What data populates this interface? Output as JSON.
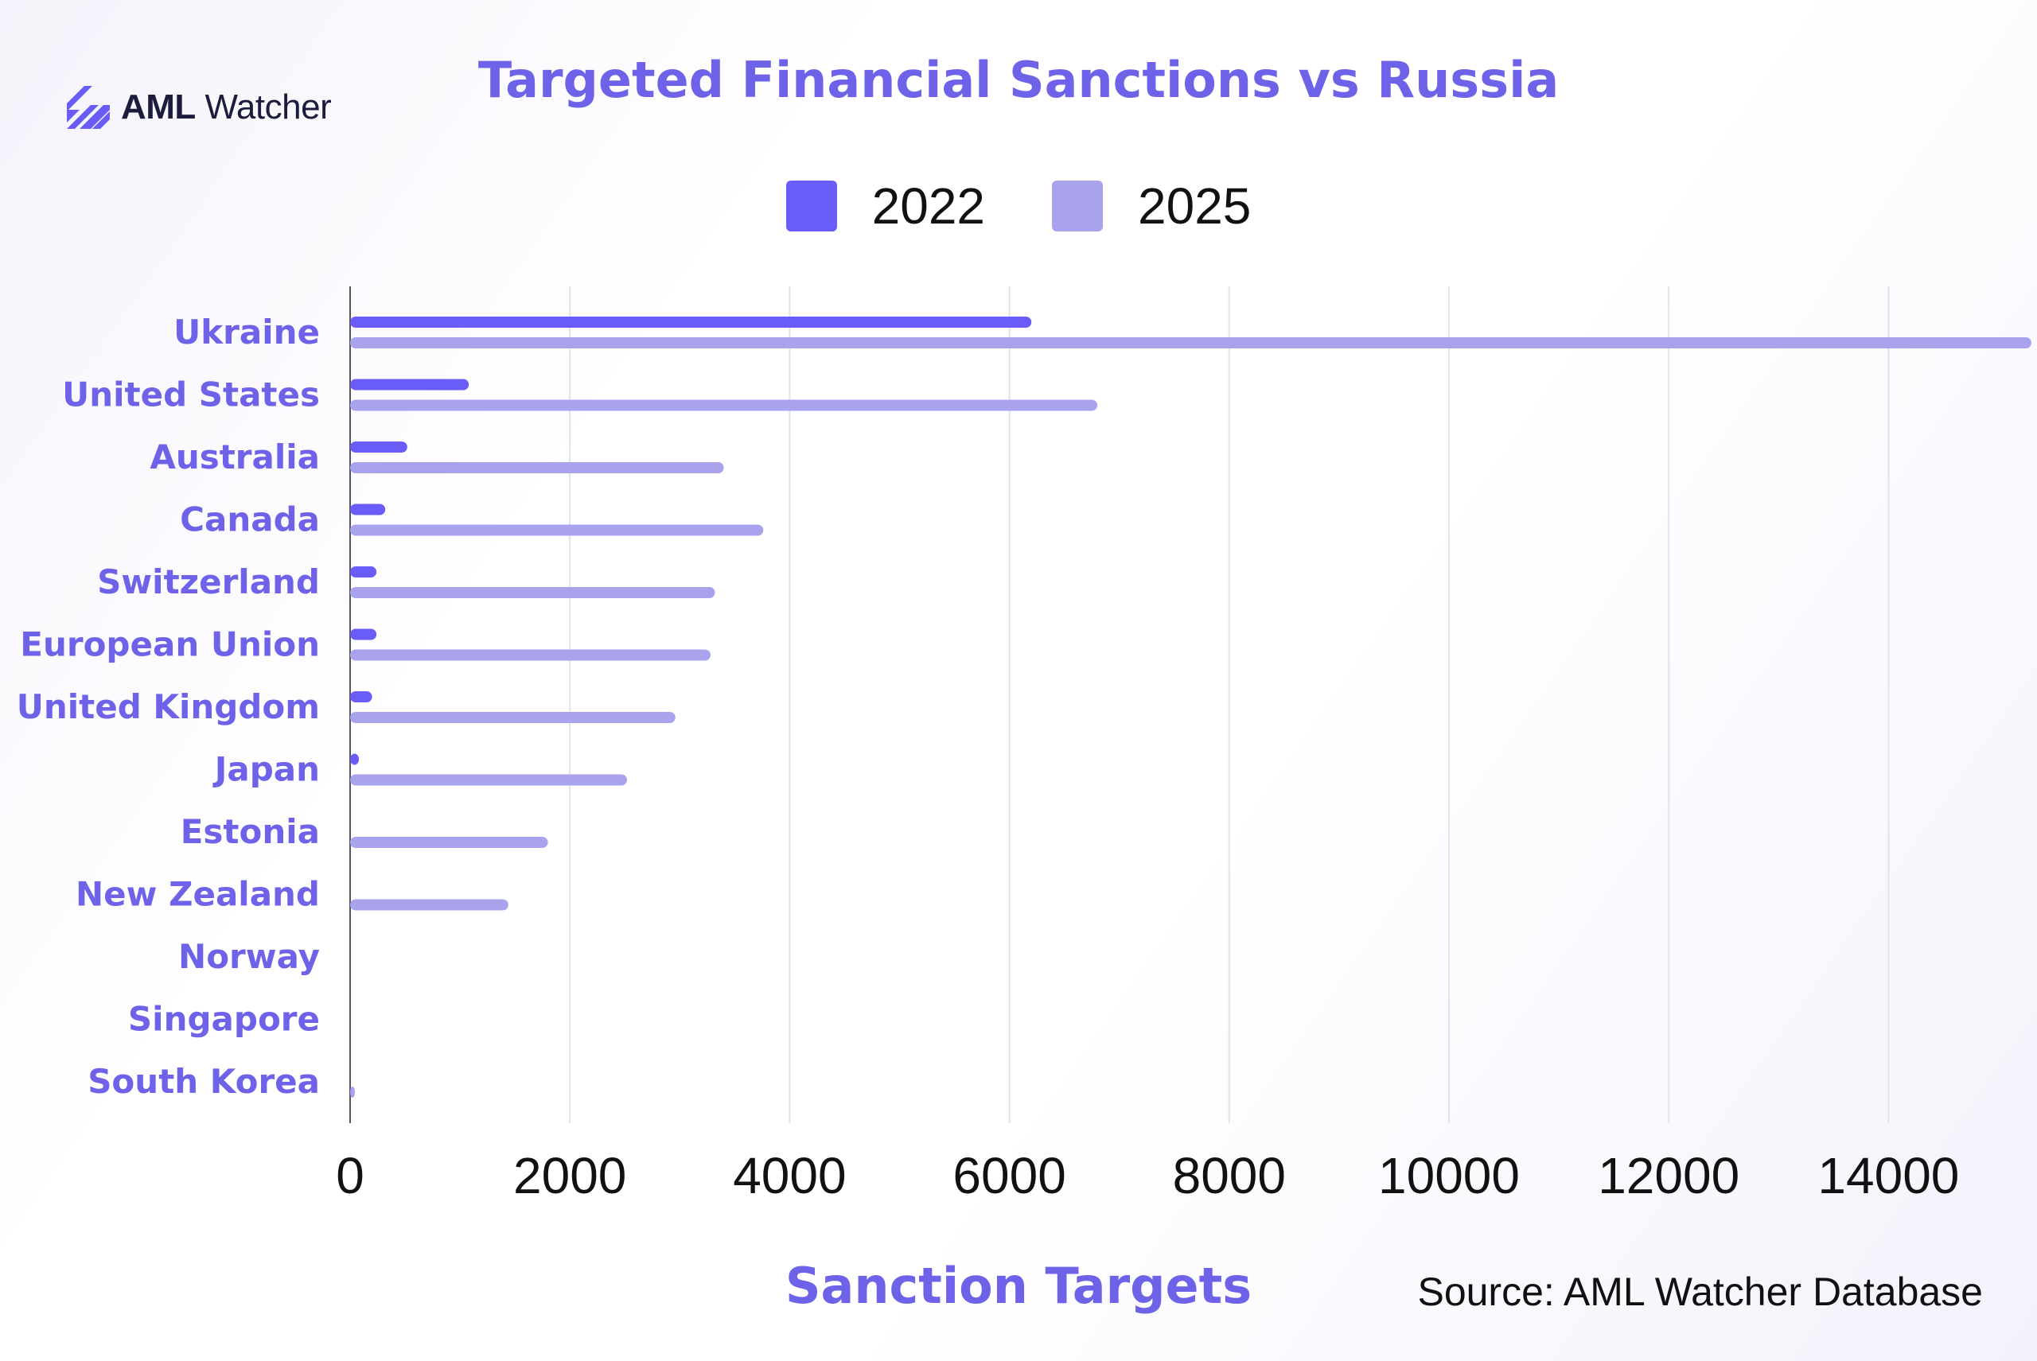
{
  "brand": {
    "name_bold": "AML",
    "name_light": " Watcher"
  },
  "title": "Targeted Financial Sanctions vs Russia",
  "source_note": "Source: AML Watcher Database",
  "colors": {
    "title": "#6e63e8",
    "series_2022": "#6a5cf6",
    "series_2025": "#a9a3ee",
    "category_label": "#6e63e8"
  },
  "chart_data": {
    "type": "bar",
    "orientation": "horizontal",
    "title": "Targeted Financial Sanctions vs Russia",
    "xlabel": "Sanction Targets",
    "ylabel": "",
    "xlim": [
      0,
      15300
    ],
    "xticks": [
      "0",
      "2000",
      "4000",
      "6000",
      "8000",
      "10000",
      "12000",
      "14000"
    ],
    "grid": true,
    "legend_position": "top-center",
    "categories": [
      "Ukraine",
      "United States",
      "Australia",
      "Canada",
      "Switzerland",
      "European Union",
      "United Kingdom",
      "Japan",
      "Estonia",
      "New Zealand",
      "Norway",
      "Singapore",
      "South Korea"
    ],
    "series": [
      {
        "name": "2022",
        "color": "#6a5cf6",
        "values": [
          6200,
          1080,
          520,
          320,
          240,
          240,
          200,
          80,
          0,
          0,
          0,
          0,
          0
        ]
      },
      {
        "name": "2025",
        "color": "#a9a3ee",
        "values": [
          15300,
          6800,
          3400,
          3760,
          3320,
          3280,
          2960,
          2520,
          1800,
          1440,
          0,
          0,
          40
        ]
      }
    ]
  }
}
